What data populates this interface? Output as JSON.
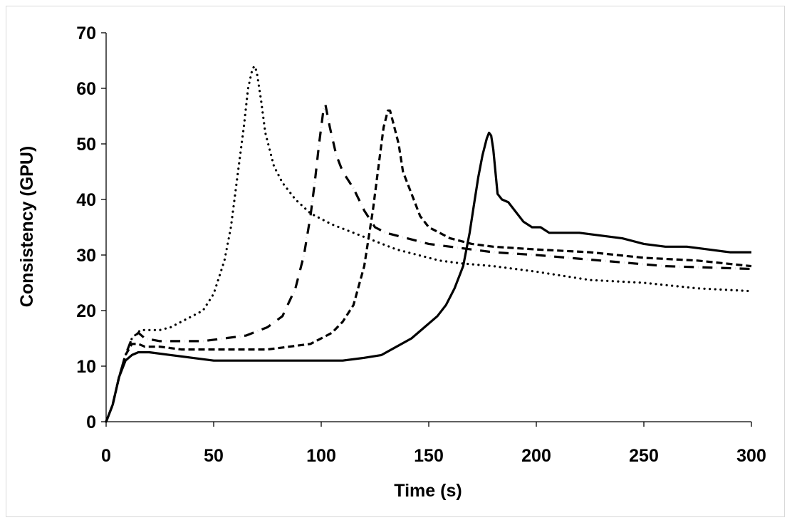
{
  "chart_data": {
    "type": "line",
    "title": "",
    "xlabel": "Time (s)",
    "ylabel": "Consistency (GPU)",
    "xlim": [
      0,
      300
    ],
    "ylim": [
      0,
      70
    ],
    "xticks": [
      0,
      50,
      100,
      150,
      200,
      250,
      300
    ],
    "yticks": [
      0,
      10,
      20,
      30,
      40,
      50,
      60,
      70
    ],
    "grid": false,
    "legend": "none",
    "series": [
      {
        "name": "dotted",
        "style": "dotted",
        "x": [
          0,
          3,
          6,
          9,
          12,
          16,
          20,
          25,
          30,
          35,
          40,
          45,
          50,
          55,
          58,
          61,
          64,
          66,
          68,
          69,
          70,
          72,
          74,
          78,
          82,
          88,
          95,
          105,
          115,
          125,
          135,
          145,
          155,
          165,
          180,
          200,
          225,
          250,
          275,
          300
        ],
        "y": [
          0,
          3,
          8,
          12,
          15,
          16.5,
          16.5,
          16.5,
          17,
          18,
          19,
          20,
          23,
          29,
          35,
          44,
          53,
          60,
          63.5,
          64,
          63,
          58,
          52,
          46,
          43,
          40,
          37.5,
          35.5,
          34,
          32.5,
          31,
          30,
          29,
          28.5,
          28,
          27,
          25.5,
          25,
          24,
          23.5
        ]
      },
      {
        "name": "dash-dot",
        "style": "dash-dot",
        "x": [
          0,
          3,
          6,
          9,
          12,
          15,
          18,
          25,
          35,
          45,
          55,
          65,
          75,
          82,
          88,
          92,
          95,
          97,
          99,
          101,
          102,
          104,
          107,
          110,
          115,
          120,
          125,
          130,
          140,
          150,
          160,
          180,
          200,
          230,
          260,
          300
        ],
        "y": [
          0,
          3,
          8,
          12,
          15,
          16,
          15,
          14.5,
          14.5,
          14.5,
          15,
          15.5,
          17,
          19,
          24,
          30,
          37,
          43,
          50,
          56,
          57,
          53,
          48,
          45,
          42,
          38,
          35,
          34,
          33,
          32,
          31.5,
          30.5,
          30,
          29,
          28,
          27.5
        ]
      },
      {
        "name": "dashed",
        "style": "dashed",
        "x": [
          0,
          3,
          6,
          9,
          12,
          15,
          18,
          25,
          35,
          45,
          55,
          65,
          75,
          85,
          95,
          105,
          110,
          115,
          120,
          124,
          127,
          129,
          131,
          132,
          134,
          136,
          138,
          140,
          143,
          146,
          150,
          160,
          170,
          180,
          200,
          225,
          250,
          275,
          300
        ],
        "y": [
          0,
          3,
          8,
          12,
          14,
          14,
          13.5,
          13.5,
          13,
          13,
          13,
          13,
          13,
          13.5,
          14,
          16,
          18,
          21,
          28,
          38,
          47,
          53,
          56,
          56,
          53,
          50,
          45,
          43,
          40,
          37,
          35,
          33,
          32,
          31.5,
          31,
          30.5,
          29.5,
          29,
          28
        ]
      },
      {
        "name": "solid",
        "style": "solid",
        "x": [
          0,
          3,
          6,
          9,
          12,
          15,
          20,
          30,
          40,
          50,
          60,
          70,
          80,
          90,
          100,
          110,
          120,
          128,
          135,
          142,
          148,
          154,
          158,
          162,
          166,
          169,
          171,
          173,
          175,
          177,
          178,
          179,
          180,
          181,
          182,
          184,
          187,
          190,
          194,
          198,
          202,
          206,
          210,
          215,
          220,
          230,
          240,
          250,
          260,
          270,
          280,
          290,
          300
        ],
        "y": [
          0,
          3,
          8,
          11,
          12,
          12.5,
          12.5,
          12,
          11.5,
          11,
          11,
          11,
          11,
          11,
          11,
          11,
          11.5,
          12,
          13.5,
          15,
          17,
          19,
          21,
          24,
          28,
          34,
          39,
          44,
          48,
          51,
          52,
          51.5,
          49,
          45,
          41,
          40,
          39.5,
          38,
          36,
          35,
          35,
          34,
          34,
          34,
          34,
          33.5,
          33,
          32,
          31.5,
          31.5,
          31,
          30.5,
          30.5
        ]
      }
    ]
  }
}
